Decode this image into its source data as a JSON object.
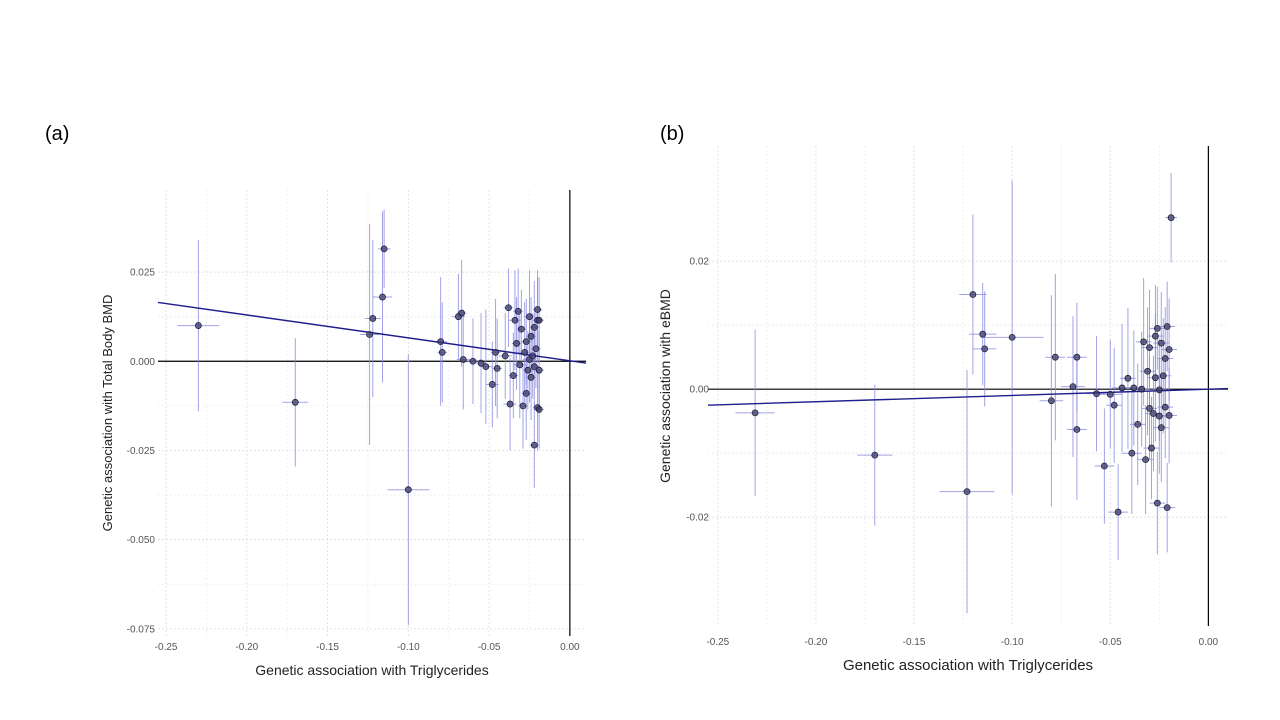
{
  "panels": [
    {
      "label": "(a)"
    },
    {
      "label": "(b)"
    }
  ],
  "chart_data": [
    {
      "type": "scatter",
      "xlabel": "Genetic association with Triglycerides",
      "ylabel": "Genetic association with Total Body BMD",
      "xlim": [
        -0.255,
        0.01
      ],
      "ylim": [
        -0.077,
        0.048
      ],
      "xticks": [
        -0.25,
        -0.2,
        -0.15,
        -0.1,
        -0.05,
        0.0
      ],
      "xtick_labels": [
        "-0.25",
        "-0.20",
        "-0.15",
        "-0.10",
        "-0.05",
        "0.00"
      ],
      "yticks": [
        -0.075,
        -0.05,
        -0.025,
        0.0,
        0.025
      ],
      "ytick_labels": [
        "-0.075",
        "-0.050",
        "-0.025",
        "0.000",
        "0.025"
      ],
      "grid": true,
      "colors": {
        "point": "#3c3c64",
        "errorbar": "#8c8ce0",
        "fit_line": "#1e1e8c",
        "axis_line": "#000000"
      },
      "fit_line": {
        "x": [
          -0.255,
          0.01
        ],
        "y": [
          0.0165,
          -0.0005
        ]
      },
      "points": [
        {
          "x": -0.23,
          "y": 0.01,
          "xerr": 0.013,
          "yerr": 0.024
        },
        {
          "x": -0.17,
          "y": -0.0115,
          "xerr": 0.008,
          "yerr": 0.018
        },
        {
          "x": -0.124,
          "y": 0.0075,
          "xerr": 0.006,
          "yerr": 0.031
        },
        {
          "x": -0.122,
          "y": 0.012,
          "xerr": 0.005,
          "yerr": 0.022
        },
        {
          "x": -0.116,
          "y": 0.018,
          "xerr": 0.006,
          "yerr": 0.024
        },
        {
          "x": -0.115,
          "y": 0.0315,
          "xerr": 0.004,
          "yerr": 0.011
        },
        {
          "x": -0.1,
          "y": -0.036,
          "xerr": 0.013,
          "yerr": 0.038
        },
        {
          "x": -0.08,
          "y": 0.0055,
          "xerr": 0.004,
          "yerr": 0.018
        },
        {
          "x": -0.079,
          "y": 0.0025,
          "xerr": 0.003,
          "yerr": 0.014
        },
        {
          "x": -0.069,
          "y": 0.0125,
          "xerr": 0.004,
          "yerr": 0.012
        },
        {
          "x": -0.067,
          "y": 0.0135,
          "xerr": 0.003,
          "yerr": 0.015
        },
        {
          "x": -0.066,
          "y": 0.0005,
          "xerr": 0.004,
          "yerr": 0.014
        },
        {
          "x": -0.06,
          "y": 0.0,
          "xerr": 0.004,
          "yerr": 0.012
        },
        {
          "x": -0.055,
          "y": -0.0005,
          "xerr": 0.003,
          "yerr": 0.014
        },
        {
          "x": -0.052,
          "y": -0.0015,
          "xerr": 0.004,
          "yerr": 0.016
        },
        {
          "x": -0.048,
          "y": -0.0065,
          "xerr": 0.004,
          "yerr": 0.012
        },
        {
          "x": -0.046,
          "y": 0.0025,
          "xerr": 0.003,
          "yerr": 0.015
        },
        {
          "x": -0.045,
          "y": -0.002,
          "xerr": 0.003,
          "yerr": 0.014
        },
        {
          "x": -0.04,
          "y": 0.0015,
          "xerr": 0.004,
          "yerr": 0.012
        },
        {
          "x": -0.038,
          "y": 0.015,
          "xerr": 0.003,
          "yerr": 0.011
        },
        {
          "x": -0.037,
          "y": -0.012,
          "xerr": 0.004,
          "yerr": 0.013
        },
        {
          "x": -0.035,
          "y": -0.004,
          "xerr": 0.003,
          "yerr": 0.012
        },
        {
          "x": -0.034,
          "y": 0.0115,
          "xerr": 0.004,
          "yerr": 0.014
        },
        {
          "x": -0.033,
          "y": 0.005,
          "xerr": 0.003,
          "yerr": 0.013
        },
        {
          "x": -0.032,
          "y": 0.014,
          "xerr": 0.003,
          "yerr": 0.012
        },
        {
          "x": -0.031,
          "y": -0.001,
          "xerr": 0.004,
          "yerr": 0.015
        },
        {
          "x": -0.03,
          "y": 0.009,
          "xerr": 0.003,
          "yerr": 0.011
        },
        {
          "x": -0.029,
          "y": -0.0125,
          "xerr": 0.003,
          "yerr": 0.012
        },
        {
          "x": -0.028,
          "y": 0.0025,
          "xerr": 0.004,
          "yerr": 0.014
        },
        {
          "x": -0.027,
          "y": -0.009,
          "xerr": 0.003,
          "yerr": 0.013
        },
        {
          "x": -0.027,
          "y": 0.0055,
          "xerr": 0.003,
          "yerr": 0.012
        },
        {
          "x": -0.026,
          "y": -0.0025,
          "xerr": 0.003,
          "yerr": 0.011
        },
        {
          "x": -0.025,
          "y": 0.0125,
          "xerr": 0.003,
          "yerr": 0.013
        },
        {
          "x": -0.025,
          "y": 0.0005,
          "xerr": 0.004,
          "yerr": 0.012
        },
        {
          "x": -0.024,
          "y": 0.007,
          "xerr": 0.003,
          "yerr": 0.011
        },
        {
          "x": -0.024,
          "y": -0.0045,
          "xerr": 0.003,
          "yerr": 0.012
        },
        {
          "x": -0.023,
          "y": 0.0015,
          "xerr": 0.003,
          "yerr": 0.012
        },
        {
          "x": -0.022,
          "y": -0.0015,
          "xerr": 0.003,
          "yerr": 0.012
        },
        {
          "x": -0.022,
          "y": 0.0095,
          "xerr": 0.003,
          "yerr": 0.013
        },
        {
          "x": -0.022,
          "y": -0.0235,
          "xerr": 0.003,
          "yerr": 0.012
        },
        {
          "x": -0.021,
          "y": 0.0035,
          "xerr": 0.003,
          "yerr": 0.011
        },
        {
          "x": -0.02,
          "y": -0.013,
          "xerr": 0.003,
          "yerr": 0.012
        },
        {
          "x": -0.02,
          "y": 0.0115,
          "xerr": 0.003,
          "yerr": 0.012
        },
        {
          "x": -0.02,
          "y": 0.0145,
          "xerr": 0.003,
          "yerr": 0.011
        },
        {
          "x": -0.019,
          "y": -0.0025,
          "xerr": 0.003,
          "yerr": 0.011
        },
        {
          "x": -0.019,
          "y": 0.0115,
          "xerr": 0.003,
          "yerr": 0.012
        },
        {
          "x": -0.019,
          "y": -0.0135,
          "xerr": 0.003,
          "yerr": 0.011
        }
      ]
    },
    {
      "type": "scatter",
      "xlabel": "Genetic association with Triglycerides",
      "ylabel": "Genetic association with eBMD",
      "xlim": [
        -0.255,
        0.01
      ],
      "ylim": [
        -0.037,
        0.038
      ],
      "xticks": [
        -0.25,
        -0.2,
        -0.15,
        -0.1,
        -0.05,
        0.0
      ],
      "xtick_labels": [
        "-0.25",
        "-0.20",
        "-0.15",
        "-0.10",
        "-0.05",
        "0.00"
      ],
      "yticks": [
        -0.02,
        0.0,
        0.02
      ],
      "ytick_labels": [
        "-0.02",
        "0.00",
        "0.02"
      ],
      "grid": true,
      "colors": {
        "point": "#3c3c64",
        "errorbar": "#8c8ce0",
        "fit_line": "#1e1e8c",
        "axis_line": "#000000"
      },
      "fit_line": {
        "x": [
          -0.255,
          0.01
        ],
        "y": [
          -0.0025,
          0.0001
        ]
      },
      "points": [
        {
          "x": -0.231,
          "y": -0.0037,
          "xerr": 0.01,
          "yerr": 0.013
        },
        {
          "x": -0.17,
          "y": -0.0103,
          "xerr": 0.009,
          "yerr": 0.011
        },
        {
          "x": -0.123,
          "y": -0.016,
          "xerr": 0.014,
          "yerr": 0.019
        },
        {
          "x": -0.12,
          "y": 0.0148,
          "xerr": 0.007,
          "yerr": 0.0125
        },
        {
          "x": -0.115,
          "y": 0.0086,
          "xerr": 0.007,
          "yerr": 0.008
        },
        {
          "x": -0.114,
          "y": 0.0063,
          "xerr": 0.006,
          "yerr": 0.009
        },
        {
          "x": -0.1,
          "y": 0.0081,
          "xerr": 0.016,
          "yerr": 0.0245
        },
        {
          "x": -0.08,
          "y": -0.0018,
          "xerr": 0.006,
          "yerr": 0.0165
        },
        {
          "x": -0.078,
          "y": 0.005,
          "xerr": 0.005,
          "yerr": 0.013
        },
        {
          "x": -0.069,
          "y": 0.0004,
          "xerr": 0.006,
          "yerr": 0.011
        },
        {
          "x": -0.067,
          "y": -0.0063,
          "xerr": 0.005,
          "yerr": 0.011
        },
        {
          "x": -0.067,
          "y": 0.005,
          "xerr": 0.005,
          "yerr": 0.0085
        },
        {
          "x": -0.057,
          "y": -0.0007,
          "xerr": 0.005,
          "yerr": 0.009
        },
        {
          "x": -0.053,
          "y": -0.012,
          "xerr": 0.005,
          "yerr": 0.009
        },
        {
          "x": -0.05,
          "y": -0.0008,
          "xerr": 0.006,
          "yerr": 0.0085
        },
        {
          "x": -0.048,
          "y": -0.0025,
          "xerr": 0.004,
          "yerr": 0.009
        },
        {
          "x": -0.046,
          "y": -0.0192,
          "xerr": 0.005,
          "yerr": 0.0075
        },
        {
          "x": -0.044,
          "y": 0.0002,
          "xerr": 0.005,
          "yerr": 0.01
        },
        {
          "x": -0.041,
          "y": 0.0017,
          "xerr": 0.004,
          "yerr": 0.011
        },
        {
          "x": -0.039,
          "y": -0.01,
          "xerr": 0.005,
          "yerr": 0.0095
        },
        {
          "x": -0.038,
          "y": 0.0002,
          "xerr": 0.004,
          "yerr": 0.009
        },
        {
          "x": -0.036,
          "y": -0.0055,
          "xerr": 0.004,
          "yerr": 0.0095
        },
        {
          "x": -0.034,
          "y": 0.0,
          "xerr": 0.004,
          "yerr": 0.009
        },
        {
          "x": -0.033,
          "y": 0.0074,
          "xerr": 0.004,
          "yerr": 0.01
        },
        {
          "x": -0.032,
          "y": -0.011,
          "xerr": 0.004,
          "yerr": 0.0085
        },
        {
          "x": -0.031,
          "y": 0.0028,
          "xerr": 0.004,
          "yerr": 0.01
        },
        {
          "x": -0.03,
          "y": -0.003,
          "xerr": 0.004,
          "yerr": 0.008
        },
        {
          "x": -0.03,
          "y": 0.0065,
          "xerr": 0.004,
          "yerr": 0.009
        },
        {
          "x": -0.029,
          "y": -0.0092,
          "xerr": 0.004,
          "yerr": 0.008
        },
        {
          "x": -0.028,
          "y": -0.0038,
          "xerr": 0.004,
          "yerr": 0.009
        },
        {
          "x": -0.027,
          "y": 0.0018,
          "xerr": 0.004,
          "yerr": 0.01
        },
        {
          "x": -0.027,
          "y": 0.0083,
          "xerr": 0.004,
          "yerr": 0.008
        },
        {
          "x": -0.026,
          "y": -0.0178,
          "xerr": 0.004,
          "yerr": 0.008
        },
        {
          "x": -0.026,
          "y": 0.0095,
          "xerr": 0.004,
          "yerr": 0.0065
        },
        {
          "x": -0.025,
          "y": -0.0042,
          "xerr": 0.004,
          "yerr": 0.009
        },
        {
          "x": -0.025,
          "y": -0.0001,
          "xerr": 0.004,
          "yerr": 0.008
        },
        {
          "x": -0.024,
          "y": 0.0072,
          "xerr": 0.004,
          "yerr": 0.008
        },
        {
          "x": -0.024,
          "y": -0.006,
          "xerr": 0.004,
          "yerr": 0.0085
        },
        {
          "x": -0.023,
          "y": 0.0021,
          "xerr": 0.004,
          "yerr": 0.009
        },
        {
          "x": -0.022,
          "y": -0.0028,
          "xerr": 0.004,
          "yerr": 0.008
        },
        {
          "x": -0.022,
          "y": 0.0048,
          "xerr": 0.004,
          "yerr": 0.008
        },
        {
          "x": -0.021,
          "y": -0.0185,
          "xerr": 0.004,
          "yerr": 0.007
        },
        {
          "x": -0.021,
          "y": 0.0098,
          "xerr": 0.004,
          "yerr": 0.007
        },
        {
          "x": -0.02,
          "y": -0.0041,
          "xerr": 0.004,
          "yerr": 0.0075
        },
        {
          "x": -0.02,
          "y": 0.0062,
          "xerr": 0.004,
          "yerr": 0.008
        },
        {
          "x": -0.019,
          "y": 0.0268,
          "xerr": 0.003,
          "yerr": 0.007
        }
      ]
    }
  ]
}
